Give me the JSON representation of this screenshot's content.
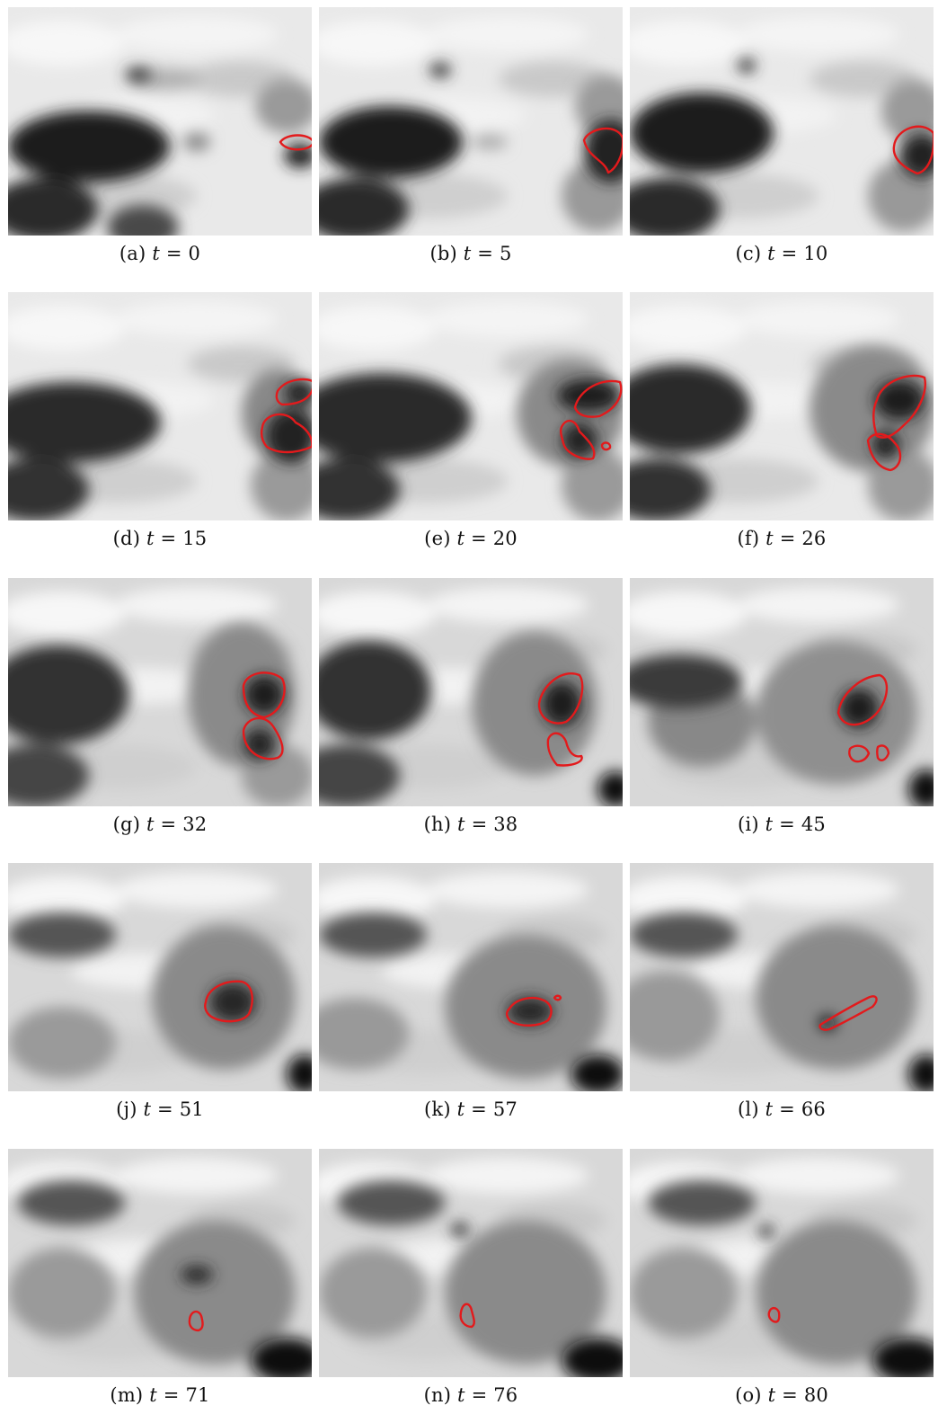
{
  "figure": {
    "contour_color": "#e31a1c",
    "panels": [
      {
        "label": "(a)",
        "variable": "t",
        "equals": "=",
        "time": "0"
      },
      {
        "label": "(b)",
        "variable": "t",
        "equals": "=",
        "time": "5"
      },
      {
        "label": "(c)",
        "variable": "t",
        "equals": "=",
        "time": "10"
      },
      {
        "label": "(d)",
        "variable": "t",
        "equals": "=",
        "time": "15"
      },
      {
        "label": "(e)",
        "variable": "t",
        "equals": "=",
        "time": "20"
      },
      {
        "label": "(f)",
        "variable": "t",
        "equals": "=",
        "time": "26"
      },
      {
        "label": "(g)",
        "variable": "t",
        "equals": "=",
        "time": "32"
      },
      {
        "label": "(h)",
        "variable": "t",
        "equals": "=",
        "time": "38"
      },
      {
        "label": "(i)",
        "variable": "t",
        "equals": "=",
        "time": "45"
      },
      {
        "label": "(j)",
        "variable": "t",
        "equals": "=",
        "time": "51"
      },
      {
        "label": "(k)",
        "variable": "t",
        "equals": "=",
        "time": "57"
      },
      {
        "label": "(l)",
        "variable": "t",
        "equals": "=",
        "time": "66"
      },
      {
        "label": "(m)",
        "variable": "t",
        "equals": "=",
        "time": "71"
      },
      {
        "label": "(n)",
        "variable": "t",
        "equals": "=",
        "time": "76"
      },
      {
        "label": "(o)",
        "variable": "t",
        "equals": "=",
        "time": "80"
      }
    ]
  }
}
